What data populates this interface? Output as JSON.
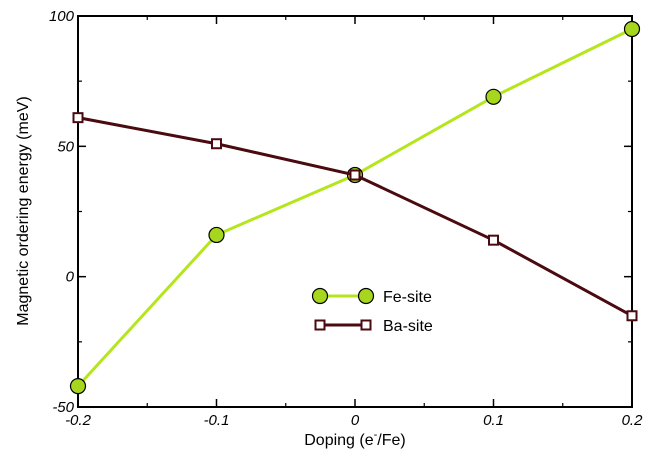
{
  "chart_data": {
    "type": "line",
    "title": "",
    "xlabel_parts": [
      "Doping (e",
      "-",
      "/Fe)"
    ],
    "ylabel": "Magnetic ordering energy (meV)",
    "xlim": [
      -0.2,
      0.2
    ],
    "ylim": [
      -50,
      100
    ],
    "x_ticks": [
      -0.2,
      -0.1,
      0,
      0.1,
      0.2
    ],
    "x_tick_labels": [
      "-0.2",
      "-0.1",
      "0",
      "0.1",
      "0.2"
    ],
    "y_ticks": [
      -50,
      0,
      50,
      100
    ],
    "y_tick_labels": [
      "-50",
      "0",
      "50",
      "100"
    ],
    "grid": false,
    "legend_position": "center",
    "x": [
      -0.2,
      -0.1,
      0,
      0.1,
      0.2
    ],
    "series": [
      {
        "name": "Fe-site",
        "values": [
          -42,
          16,
          39,
          69,
          95
        ],
        "line_color": "#b5e61d",
        "marker": "circle",
        "marker_fill": "#a6d61d",
        "marker_edge": "#000000"
      },
      {
        "name": "Ba-site",
        "values": [
          61,
          51,
          39,
          14,
          -15
        ],
        "line_color": "#4a0a0f",
        "marker": "square",
        "marker_fill": "#ffffff",
        "marker_edge": "#4a0a0f"
      }
    ]
  }
}
